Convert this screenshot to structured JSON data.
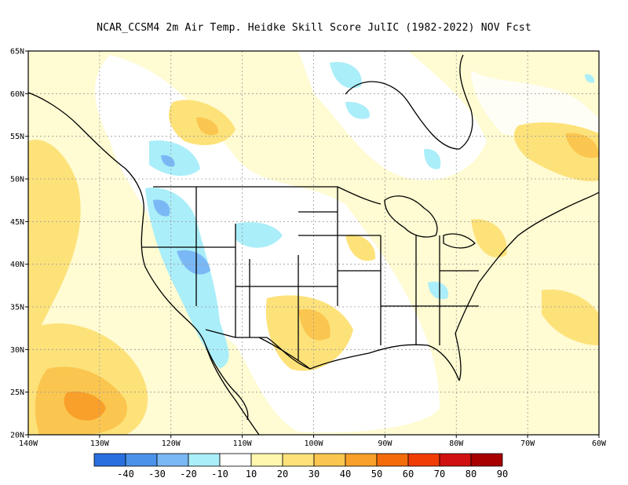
{
  "title": "NCAR_CCSM4  2m Air Temp. Heidke Skill Score JulIC (1982-2022) NOV Fcst",
  "map": {
    "lon_range": [
      -140,
      -60
    ],
    "lat_range": [
      20,
      65
    ],
    "x_ticks": [
      {
        "lon": -140,
        "label": "140W"
      },
      {
        "lon": -130,
        "label": "130W"
      },
      {
        "lon": -120,
        "label": "120W"
      },
      {
        "lon": -110,
        "label": "110W"
      },
      {
        "lon": -100,
        "label": "100W"
      },
      {
        "lon": -90,
        "label": "90W"
      },
      {
        "lon": -80,
        "label": "80W"
      },
      {
        "lon": -70,
        "label": "70W"
      },
      {
        "lon": -60,
        "label": "60W"
      }
    ],
    "y_ticks": [
      {
        "lat": 20,
        "label": "20N"
      },
      {
        "lat": 25,
        "label": "25N"
      },
      {
        "lat": 30,
        "label": "30N"
      },
      {
        "lat": 35,
        "label": "35N"
      },
      {
        "lat": 40,
        "label": "40N"
      },
      {
        "lat": 45,
        "label": "45N"
      },
      {
        "lat": 50,
        "label": "50N"
      },
      {
        "lat": 55,
        "label": "55N"
      },
      {
        "lat": 60,
        "label": "60N"
      },
      {
        "lat": 65,
        "label": "65N"
      }
    ],
    "gridlines": true
  },
  "colorbar": {
    "colors": [
      "#2a6fe0",
      "#4a92ea",
      "#7ab8f5",
      "#aaeef9",
      "#ffffff",
      "#fff7ad",
      "#fde27a",
      "#fbc64f",
      "#f8a02a",
      "#f46c0a",
      "#f03c05",
      "#d01010",
      "#a80000"
    ],
    "labels": [
      "-40",
      "-30",
      "-20",
      "-10",
      "10",
      "20",
      "30",
      "40",
      "50",
      "60",
      "70",
      "80",
      "90"
    ]
  }
}
